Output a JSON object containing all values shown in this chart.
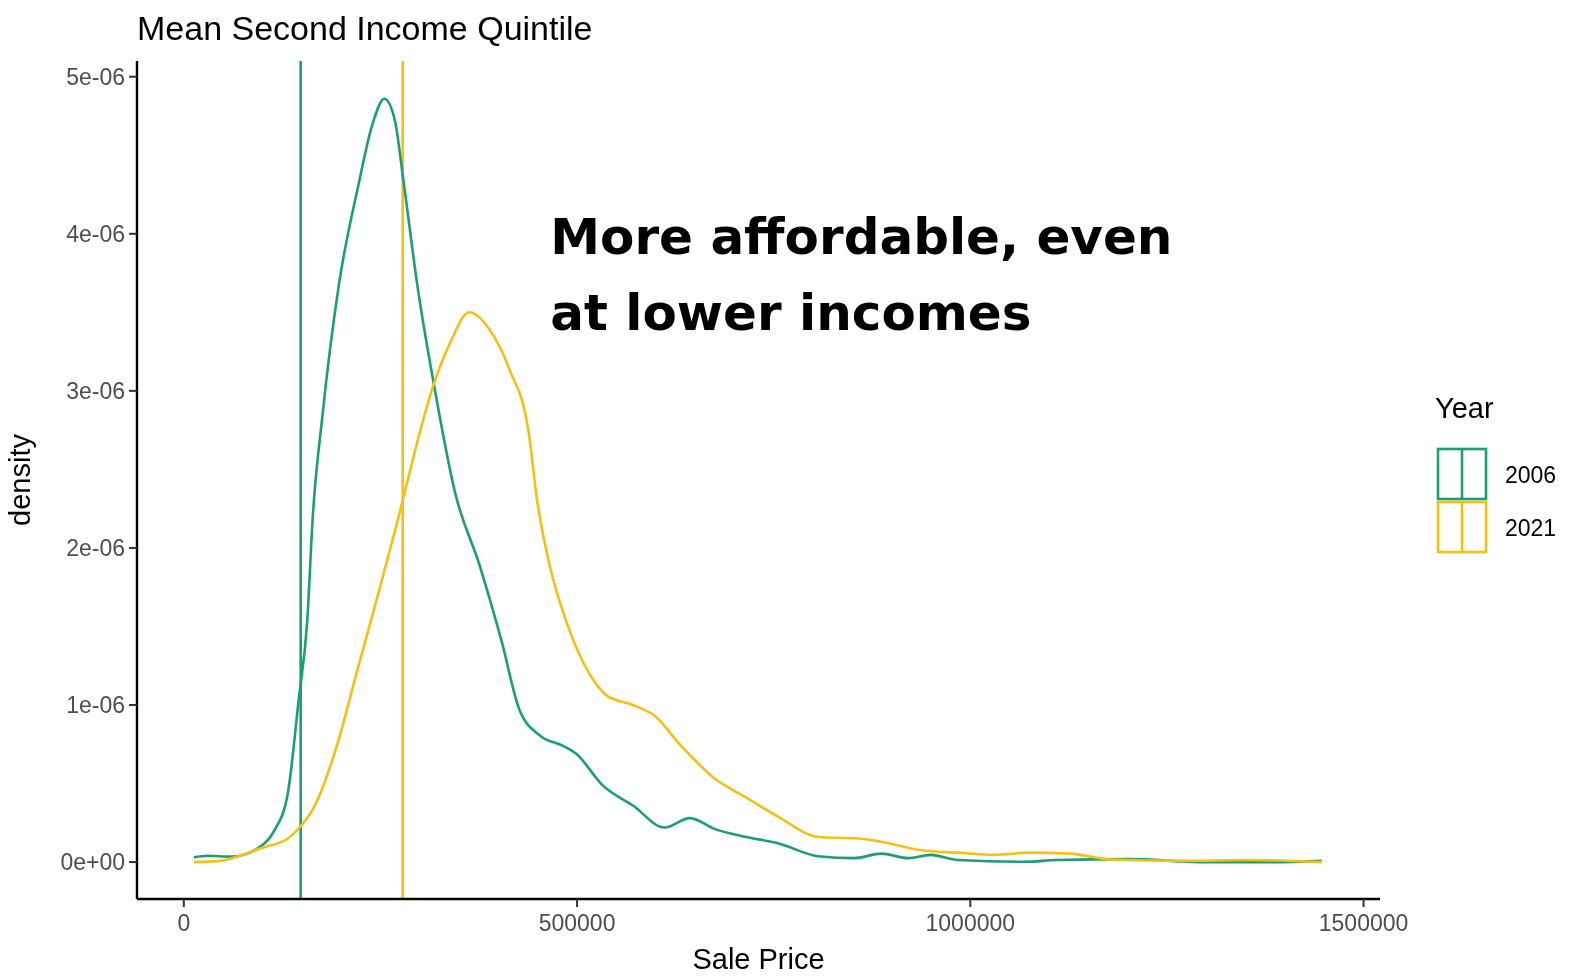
{
  "chart_data": {
    "type": "line",
    "title": "Mean Second Income Quintile",
    "xlabel": "Sale Price",
    "ylabel": "density",
    "legend_title": "Year",
    "legend": "right",
    "grid": false,
    "marker": "none",
    "line_style": "solid",
    "xlim": [
      -59500,
      1520900
    ],
    "xticks": [
      0,
      500000,
      1000000,
      1500000
    ],
    "ylim": [
      -2.35e-07,
      5.1e-06
    ],
    "yticks": [
      {
        "value": 0,
        "label": "0e+00"
      },
      {
        "value": 1e-06,
        "label": "1e-06"
      },
      {
        "value": 2e-06,
        "label": "2e-06"
      },
      {
        "value": 3e-06,
        "label": "3e-06"
      },
      {
        "value": 4e-06,
        "label": "4e-06"
      },
      {
        "value": 5e-06,
        "label": "5e-06"
      }
    ],
    "series": [
      {
        "name": "2006",
        "color": "#1b9e77",
        "x": [
          12800,
          30000,
          60000,
          95000,
          115000,
          132000,
          146000,
          157000,
          164000,
          176000,
          197000,
          222000,
          240000,
          255000,
          268000,
          280000,
          297000,
          318000,
          345000,
          376700,
          404400,
          426700,
          454400,
          482200,
          498900,
          532200,
          571100,
          611100,
          643300,
          675400,
          715400,
          755400,
          806900,
          852600,
          886900,
          921100,
          949700,
          984000,
          1069700,
          1109700,
          1201100,
          1298300,
          1384000,
          1446900
        ],
        "values": [
          3e-08,
          4e-08,
          3.5e-08,
          9e-08,
          2e-07,
          4.3e-07,
          1.03e-06,
          1.54e-06,
          2.2e-06,
          2.83e-06,
          3.67e-06,
          4.31e-06,
          4.7e-06,
          4.86e-06,
          4.73e-06,
          4.31e-06,
          3.67e-06,
          3.04e-06,
          2.35e-06,
          1.88e-06,
          1.4e-06,
          9.7e-07,
          8e-07,
          7.4e-07,
          6.9e-07,
          4.9e-07,
          3.6e-07,
          2.2e-07,
          2.8e-07,
          2.1e-07,
          1.6e-07,
          1.2e-07,
          3.7e-08,
          2.5e-08,
          5.4e-08,
          2.5e-08,
          4.6e-08,
          1.3e-08,
          2e-09,
          1.3e-08,
          1.9e-08,
          0,
          0,
          8e-09
        ]
      },
      {
        "name": "2021",
        "color": "#f5c012",
        "x": [
          12800,
          43300,
          98900,
          132200,
          148900,
          165600,
          193300,
          221100,
          248900,
          271100,
          305700,
          318200,
          339000,
          362600,
          388700,
          413700,
          438600,
          449000,
          465600,
          487800,
          515600,
          537800,
          571100,
          598900,
          632200,
          675400,
          715400,
          755400,
          806900,
          858300,
          886900,
          938300,
          984000,
          1029700,
          1075400,
          1126900,
          1178300,
          1269700,
          1355400,
          1446900
        ],
        "values": [
          0,
          6e-09,
          9e-08,
          1.5e-07,
          2.3e-07,
          3.5e-07,
          7.2e-07,
          1.23e-06,
          1.74e-06,
          2.16e-06,
          2.84e-06,
          3.05e-06,
          3.31e-06,
          3.5e-06,
          3.39e-06,
          3.14e-06,
          2.73e-06,
          2.31e-06,
          1.88e-06,
          1.51e-06,
          1.2e-06,
          1.06e-06,
          1e-06,
          9.3e-07,
          7.4e-07,
          5.3e-07,
          4.1e-07,
          2.9e-07,
          1.6e-07,
          1.5e-07,
          1.3e-07,
          7.5e-08,
          6e-08,
          4.6e-08,
          6e-08,
          5.4e-08,
          1.6e-08,
          8e-09,
          1.3e-08,
          0
        ]
      }
    ],
    "ref_lines": [
      {
        "axis": "x",
        "value": 148600,
        "color": "#1b9e77"
      },
      {
        "axis": "x",
        "value": 278300,
        "color": "#f5c012"
      }
    ],
    "annotations": [
      "More affordable, even at lower incomes"
    ]
  }
}
